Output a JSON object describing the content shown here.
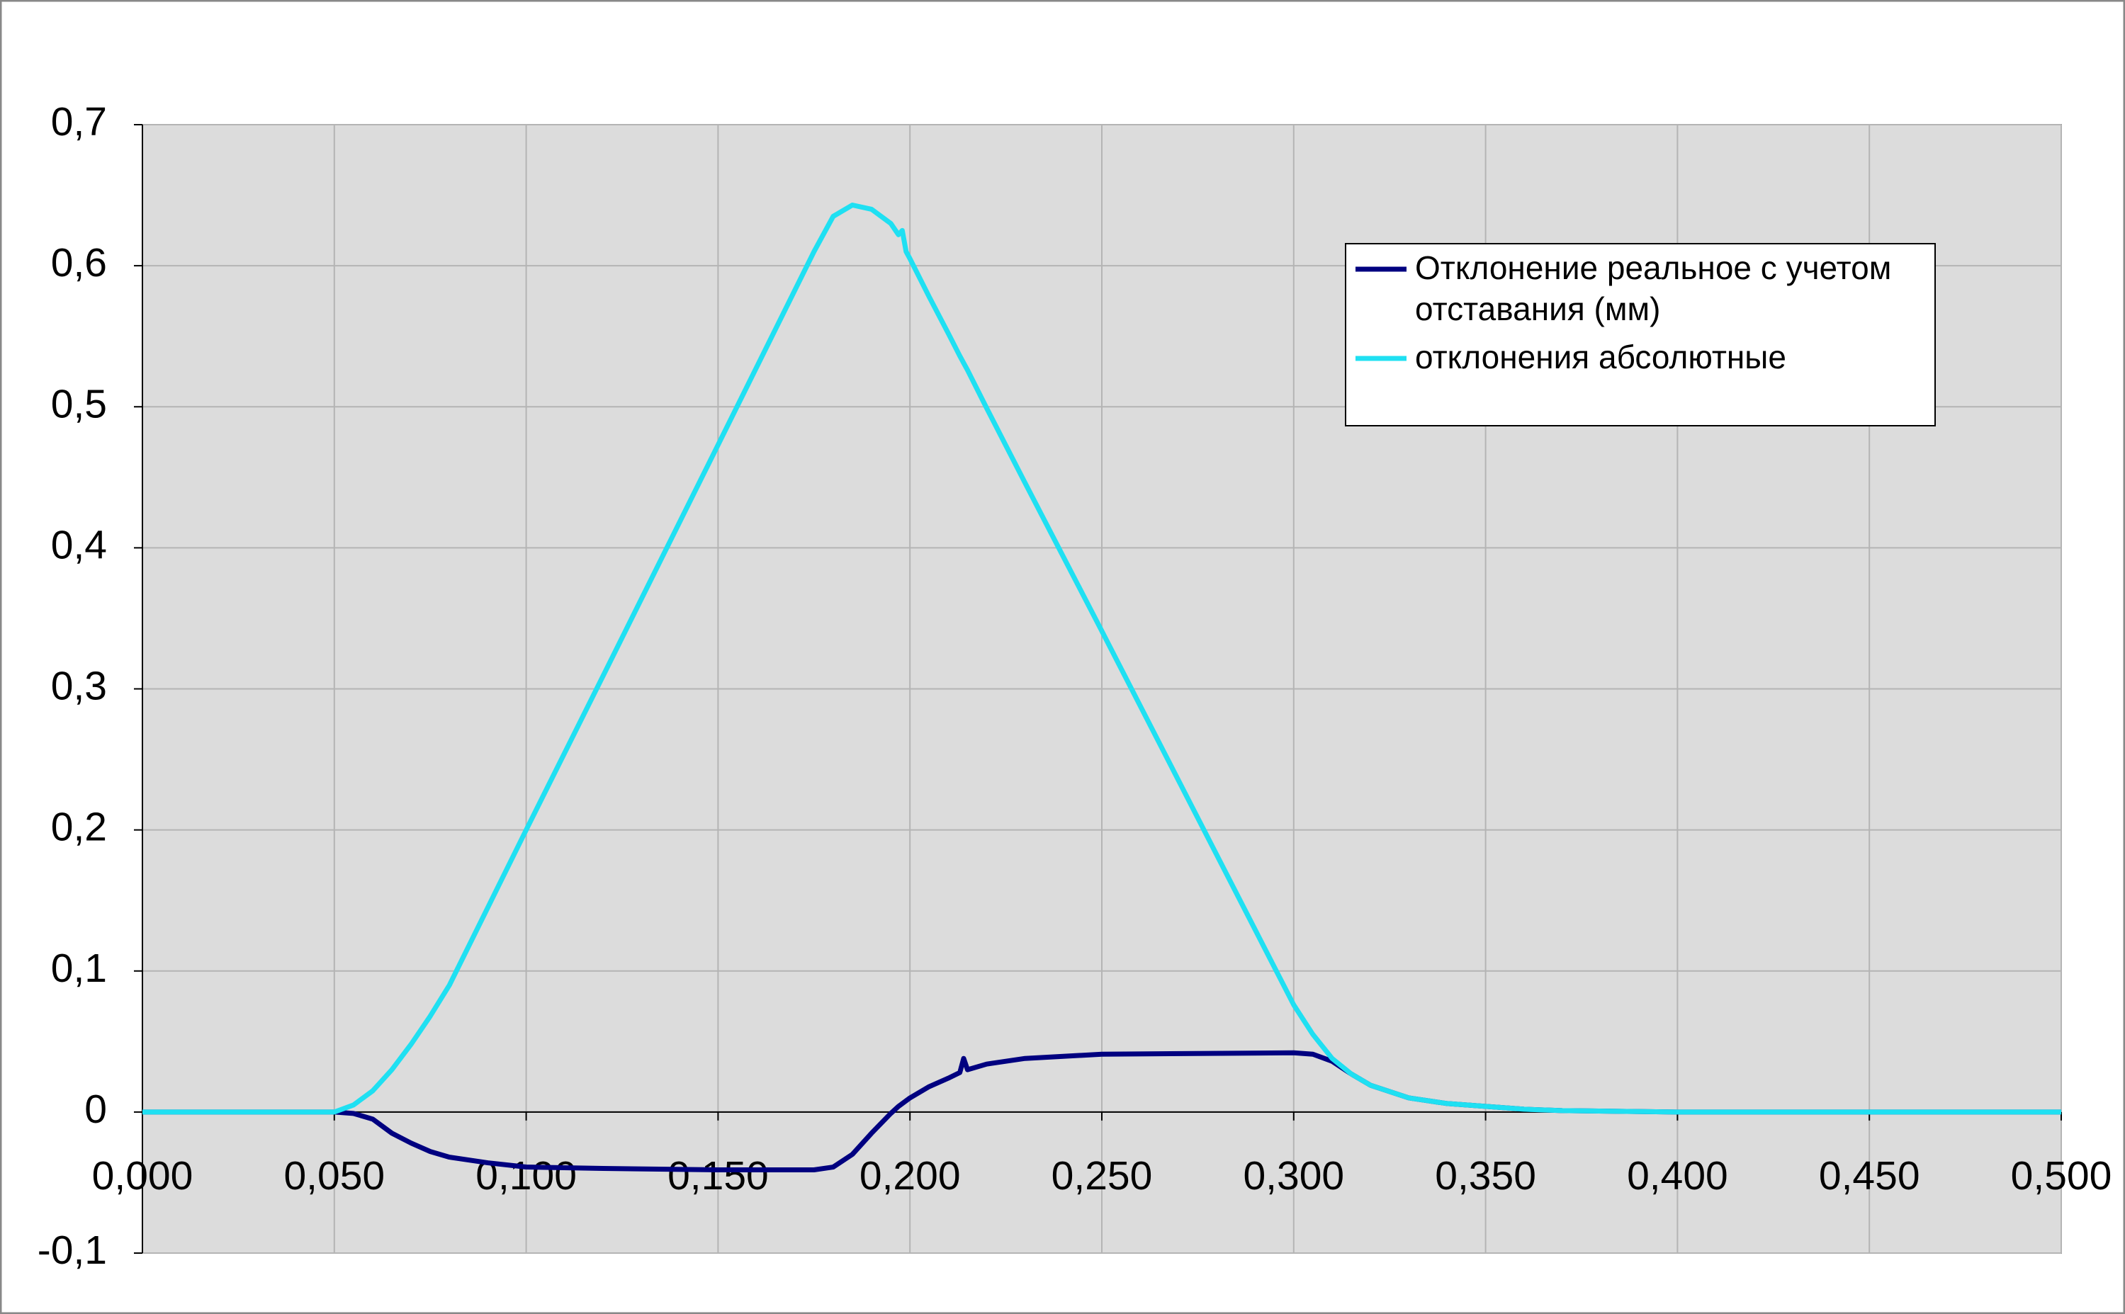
{
  "chart_data": {
    "type": "line",
    "x": [
      0,
      0.05,
      0.055,
      0.06,
      0.065,
      0.07,
      0.075,
      0.08,
      0.09,
      0.1,
      0.12,
      0.15,
      0.175,
      0.18,
      0.185,
      0.19,
      0.195,
      0.197,
      0.198,
      0.199,
      0.2,
      0.205,
      0.21,
      0.213,
      0.214,
      0.215,
      0.22,
      0.23,
      0.25,
      0.3,
      0.305,
      0.31,
      0.315,
      0.32,
      0.33,
      0.34,
      0.35,
      0.36,
      0.37,
      0.4,
      0.5
    ],
    "series": [
      {
        "name": "Отклонение реальное с учетом отставания (мм)",
        "color": "#000080",
        "values": [
          0,
          0,
          -0.001,
          -0.005,
          -0.015,
          -0.022,
          -0.028,
          -0.032,
          -0.036,
          -0.039,
          -0.04,
          -0.041,
          -0.041,
          -0.039,
          -0.03,
          -0.015,
          -0.001,
          0.004,
          0.006,
          0.008,
          0.01,
          0.018,
          0.024,
          0.028,
          0.038,
          0.03,
          0.034,
          0.038,
          0.041,
          0.042,
          0.041,
          0.036,
          0.027,
          0.019,
          0.01,
          0.006,
          0.004,
          0.002,
          0.001,
          0,
          0
        ]
      },
      {
        "name": "отклонения абсолютные",
        "color": "#1fe0f2",
        "values": [
          0,
          0,
          0.005,
          0.015,
          0.03,
          0.048,
          0.068,
          0.09,
          0.145,
          0.2,
          0.309,
          0.473,
          0.61,
          0.635,
          0.643,
          0.64,
          0.63,
          0.622,
          0.625,
          0.61,
          0.605,
          0.578,
          0.552,
          0.536,
          0.531,
          0.526,
          0.499,
          0.446,
          0.341,
          0.076,
          0.055,
          0.038,
          0.027,
          0.019,
          0.01,
          0.006,
          0.004,
          0.002,
          0.001,
          0,
          0
        ]
      }
    ],
    "xlim": [
      0,
      0.5
    ],
    "xticks": [
      {
        "value": 0,
        "label": "0,000"
      },
      {
        "value": 0.05,
        "label": "0,050"
      },
      {
        "value": 0.1,
        "label": "0,100"
      },
      {
        "value": 0.15,
        "label": "0,150"
      },
      {
        "value": 0.2,
        "label": "0,200"
      },
      {
        "value": 0.25,
        "label": "0,250"
      },
      {
        "value": 0.3,
        "label": "0,300"
      },
      {
        "value": 0.35,
        "label": "0,350"
      },
      {
        "value": 0.4,
        "label": "0,400"
      },
      {
        "value": 0.45,
        "label": "0,450"
      },
      {
        "value": 0.5,
        "label": "0,500"
      }
    ],
    "ylim": [
      -0.1,
      0.7
    ],
    "yticks": [
      {
        "value": -0.1,
        "label": "-0,1"
      },
      0,
      {
        "value": 0.1,
        "label": "0,1"
      },
      {
        "value": 0.2,
        "label": "0,2"
      },
      {
        "value": 0.3,
        "label": "0,3"
      },
      {
        "value": 0.4,
        "label": "0,4"
      },
      {
        "value": 0.5,
        "label": "0,5"
      },
      {
        "value": 0.6,
        "label": "0,6"
      },
      {
        "value": 0.7,
        "label": "0,7"
      }
    ],
    "grid": true,
    "legend": "upper-right"
  }
}
